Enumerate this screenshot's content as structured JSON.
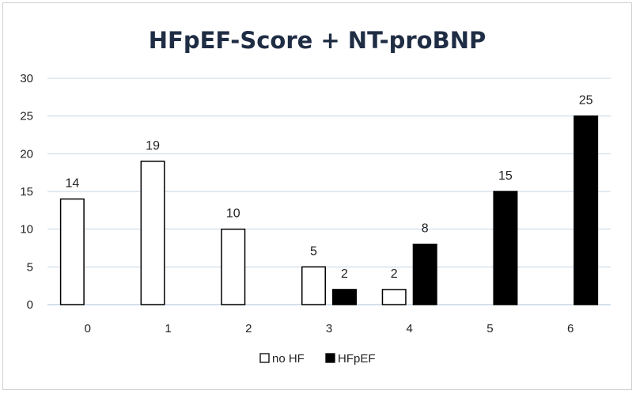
{
  "chart_data": {
    "type": "bar",
    "title": "HFpEF-Score + NT-proBNP",
    "categories": [
      "0",
      "1",
      "2",
      "3",
      "4",
      "5",
      "6"
    ],
    "series": [
      {
        "name": "no HF",
        "values": [
          14,
          19,
          10,
          5,
          2,
          null,
          null
        ],
        "fill": "#ffffff",
        "stroke": "#000000"
      },
      {
        "name": "HFpEF",
        "values": [
          null,
          null,
          null,
          2,
          8,
          15,
          25
        ],
        "fill": "#000000",
        "stroke": "#000000"
      }
    ],
    "ylim": [
      0,
      30
    ],
    "yticks": [
      "0",
      "5",
      "10",
      "15",
      "20",
      "25",
      "30"
    ],
    "grid": true,
    "legend_position": "bottom",
    "gridline_color": "#c5d5e5",
    "axis_color": "#c5d5e5"
  }
}
